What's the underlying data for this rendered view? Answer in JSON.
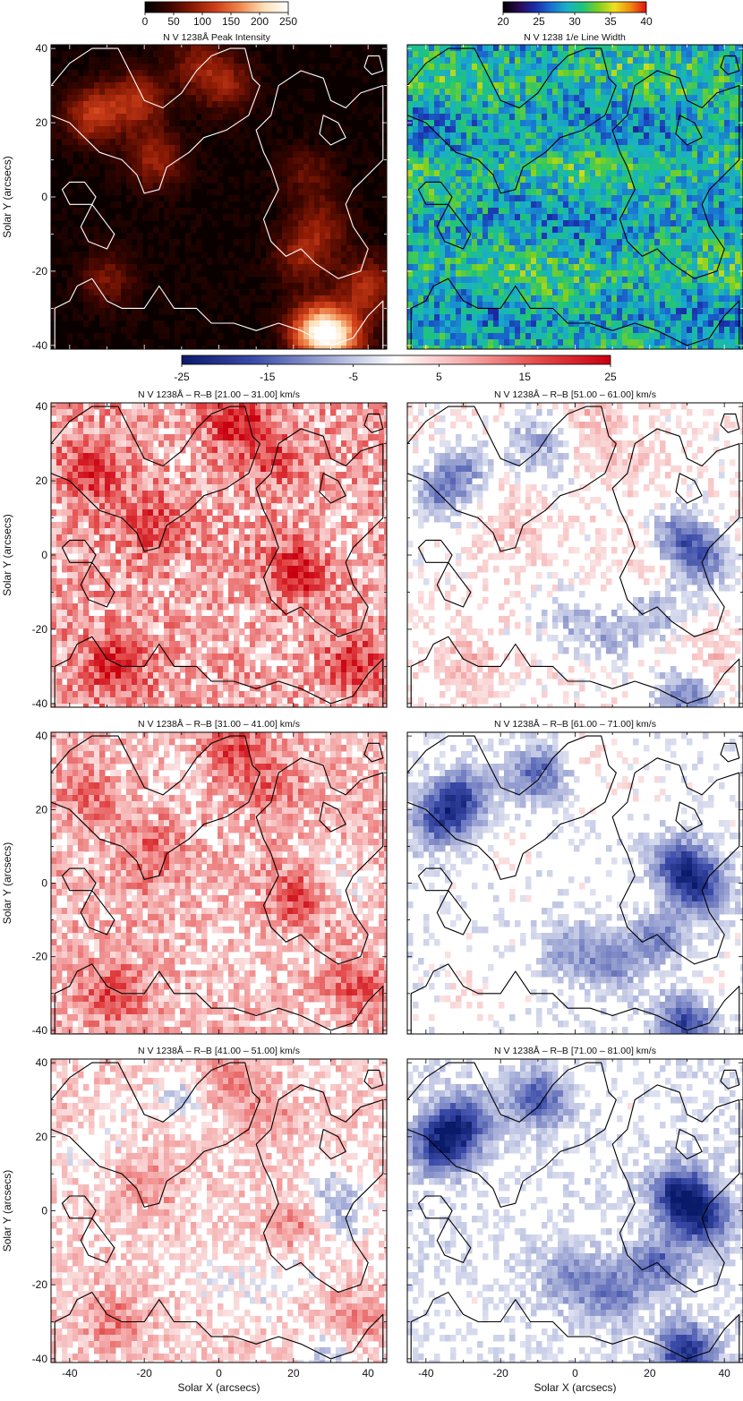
{
  "chart_data": [
    {
      "type": "colorbar",
      "label": "N V 1238Å Peak Intensity",
      "ticks": [
        "0",
        "50",
        "100",
        "150",
        "200",
        "250"
      ],
      "range": [
        0,
        250
      ],
      "colormap": [
        "#000000",
        "#3a0500",
        "#8a1a05",
        "#d0401a",
        "#f08a50",
        "#ffe0b8",
        "#ffffff"
      ]
    },
    {
      "type": "colorbar",
      "label": "N V 1238 1/e Line Width",
      "ticks": [
        "20",
        "25",
        "30",
        "35",
        "40"
      ],
      "range": [
        20,
        40
      ],
      "colormap": [
        "#000000",
        "#2a0a55",
        "#1b2aa8",
        "#1a6fd0",
        "#19b0c8",
        "#1fc47a",
        "#7ed020",
        "#f0e020",
        "#f08a10",
        "#e01010"
      ]
    },
    {
      "type": "colorbar",
      "label": "",
      "ticks": [
        "-25",
        "-15",
        "-5",
        "5",
        "15",
        "25"
      ],
      "range": [
        -25,
        25
      ],
      "colormap": [
        "#0a1a6a",
        "#3a4aa8",
        "#9aa3d2",
        "#ffffff",
        "#f4a8a8",
        "#e34848",
        "#c80010"
      ]
    },
    {
      "type": "heatmap",
      "title": "",
      "kind": "intensity",
      "xlim": [
        -45,
        45
      ],
      "ylim": [
        -41,
        41
      ],
      "yticks": [
        "-40",
        "-20",
        "0",
        "20",
        "40"
      ],
      "ylabel": "Solar Y (arcsecs)",
      "contour_color": "#ffffff"
    },
    {
      "type": "heatmap",
      "title": "",
      "kind": "width",
      "xlim": [
        -45,
        45
      ],
      "ylim": [
        -41,
        41
      ],
      "yticks": [],
      "contour_color": "#000000"
    },
    {
      "type": "heatmap",
      "title": "N V 1238Å – R–B [21.00 – 31.00] km/s",
      "kind": "rb",
      "red_bias": 0.9,
      "blue_bias": 0.1,
      "xlim": [
        -45,
        45
      ],
      "ylim": [
        -41,
        41
      ],
      "yticks": [
        "-40",
        "-20",
        "0",
        "20",
        "40"
      ],
      "ylabel": "Solar Y (arcsecs)",
      "contour_color": "#000000"
    },
    {
      "type": "heatmap",
      "title": "N V 1238Å – R–B [51.00 – 61.00] km/s",
      "kind": "rb",
      "red_bias": 0.35,
      "blue_bias": 0.4,
      "xlim": [
        -45,
        45
      ],
      "ylim": [
        -41,
        41
      ],
      "yticks": [],
      "contour_color": "#000000"
    },
    {
      "type": "heatmap",
      "title": "N V 1238Å – R–B [31.00 – 41.00] km/s",
      "kind": "rb",
      "red_bias": 0.75,
      "blue_bias": 0.15,
      "xlim": [
        -45,
        45
      ],
      "ylim": [
        -41,
        41
      ],
      "yticks": [
        "-40",
        "-20",
        "0",
        "20",
        "40"
      ],
      "ylabel": "Solar Y (arcsecs)",
      "contour_color": "#000000"
    },
    {
      "type": "heatmap",
      "title": "N V 1238Å – R–B [61.00 – 71.00] km/s",
      "kind": "rb",
      "red_bias": 0.2,
      "blue_bias": 0.5,
      "xlim": [
        -45,
        45
      ],
      "ylim": [
        -41,
        41
      ],
      "yticks": [],
      "contour_color": "#000000"
    },
    {
      "type": "heatmap",
      "title": "N V 1238Å – R–B [41.00 – 51.00] km/s",
      "kind": "rb",
      "red_bias": 0.55,
      "blue_bias": 0.25,
      "xlim": [
        -45,
        45
      ],
      "ylim": [
        -41,
        41
      ],
      "yticks": [
        "-40",
        "-20",
        "0",
        "20",
        "40"
      ],
      "ylabel": "Solar Y (arcsecs)",
      "xticks": [
        "-40",
        "-20",
        "0",
        "20",
        "40"
      ],
      "xlabel": "Solar X (arcsecs)",
      "contour_color": "#000000"
    },
    {
      "type": "heatmap",
      "title": "N V 1238Å – R–B [71.00 – 81.00] km/s",
      "kind": "rb",
      "red_bias": 0.12,
      "blue_bias": 0.55,
      "xlim": [
        -45,
        45
      ],
      "ylim": [
        -41,
        41
      ],
      "yticks": [],
      "xticks": [
        "-40",
        "-20",
        "0",
        "20",
        "40"
      ],
      "xlabel": "Solar X (arcsecs)",
      "contour_color": "#000000"
    }
  ]
}
